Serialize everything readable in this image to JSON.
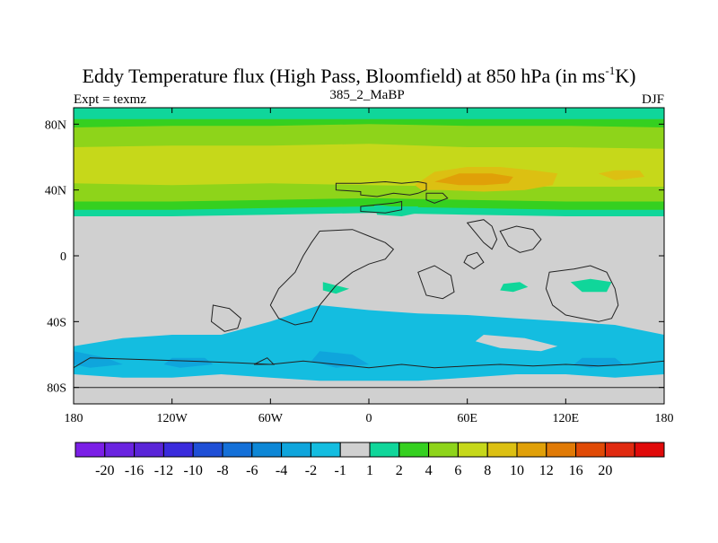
{
  "chart_data": {
    "type": "heatmap",
    "title_main": "Eddy Temperature flux (High Pass, Bloomfield) at 850 hPa (in ms",
    "title_sup": "-1",
    "title_end": "K)",
    "subtitle_left": "Expt = texmz",
    "subtitle_center": "385_2_MaBP",
    "subtitle_right": "DJF",
    "x_range": [
      -180,
      180
    ],
    "y_range": [
      -90,
      90
    ],
    "x_ticks": [
      {
        "value": -180,
        "label": "180"
      },
      {
        "value": -120,
        "label": "120W"
      },
      {
        "value": -60,
        "label": "60W"
      },
      {
        "value": 0,
        "label": "0"
      },
      {
        "value": 60,
        "label": "60E"
      },
      {
        "value": 120,
        "label": "120E"
      },
      {
        "value": 180,
        "label": "180"
      }
    ],
    "y_ticks": [
      {
        "value": 80,
        "label": "80N"
      },
      {
        "value": 40,
        "label": "40N"
      },
      {
        "value": 0,
        "label": "0"
      },
      {
        "value": -40,
        "label": "40S"
      },
      {
        "value": -80,
        "label": "80S"
      }
    ],
    "colorbar": {
      "colors": [
        "#7b1fe6",
        "#6a24e0",
        "#5a25d8",
        "#3a2bdc",
        "#1f4fd6",
        "#1470d8",
        "#0d87d6",
        "#0fa5dc",
        "#14bde0",
        "#d0d0d0",
        "#10d69a",
        "#35d020",
        "#8ed41a",
        "#c6d81a",
        "#dcc012",
        "#e0a008",
        "#e07a06",
        "#e04a06",
        "#e02a10",
        "#e00a0a"
      ],
      "labels": [
        "-20",
        "-16",
        "-12",
        "-10",
        "-8",
        "-6",
        "-4",
        "-2",
        "-1",
        "1",
        "2",
        "4",
        "6",
        "8",
        "10",
        "12",
        "16",
        "20"
      ]
    },
    "regions": [
      {
        "name": "nh-band-1-2",
        "color": "#10d69a",
        "polygon": [
          [
            -180,
            90
          ],
          [
            180,
            90
          ],
          [
            180,
            24
          ],
          [
            120,
            24
          ],
          [
            60,
            25
          ],
          [
            0,
            26
          ],
          [
            -60,
            25
          ],
          [
            -120,
            24
          ],
          [
            -180,
            24
          ]
        ]
      },
      {
        "name": "nh-band-2-4",
        "color": "#35d020",
        "polygon": [
          [
            -180,
            83
          ],
          [
            180,
            83
          ],
          [
            180,
            28
          ],
          [
            120,
            28
          ],
          [
            60,
            29
          ],
          [
            0,
            30
          ],
          [
            -60,
            29
          ],
          [
            -120,
            28
          ],
          [
            -180,
            28
          ]
        ]
      },
      {
        "name": "nh-band-4-6",
        "color": "#8ed41a",
        "polygon": [
          [
            -180,
            78
          ],
          [
            -120,
            79
          ],
          [
            -60,
            79
          ],
          [
            0,
            80
          ],
          [
            60,
            79
          ],
          [
            120,
            79
          ],
          [
            180,
            78
          ],
          [
            180,
            33
          ],
          [
            120,
            33
          ],
          [
            60,
            34
          ],
          [
            0,
            35
          ],
          [
            -60,
            34
          ],
          [
            -120,
            33
          ],
          [
            -180,
            33
          ]
        ]
      },
      {
        "name": "nh-band-6-8",
        "color": "#c6d81a",
        "polygon": [
          [
            -180,
            66
          ],
          [
            -120,
            67
          ],
          [
            -60,
            67
          ],
          [
            0,
            68
          ],
          [
            60,
            66
          ],
          [
            120,
            66
          ],
          [
            180,
            65
          ],
          [
            180,
            42
          ],
          [
            120,
            42
          ],
          [
            60,
            42
          ],
          [
            0,
            43
          ],
          [
            -60,
            44
          ],
          [
            -120,
            43
          ],
          [
            -180,
            44
          ]
        ]
      },
      {
        "name": "nh-max-8-10",
        "color": "#dcc012",
        "polygon": [
          [
            28,
            43
          ],
          [
            40,
            51
          ],
          [
            60,
            54
          ],
          [
            80,
            54
          ],
          [
            100,
            52
          ],
          [
            115,
            50
          ],
          [
            112,
            43
          ],
          [
            95,
            40
          ],
          [
            70,
            39
          ],
          [
            45,
            40
          ],
          [
            32,
            40
          ]
        ]
      },
      {
        "name": "nh-max-10-12",
        "color": "#e0a008",
        "polygon": [
          [
            40,
            45
          ],
          [
            55,
            50
          ],
          [
            75,
            50
          ],
          [
            88,
            48
          ],
          [
            85,
            44
          ],
          [
            70,
            43
          ],
          [
            55,
            43
          ]
        ]
      },
      {
        "name": "nh-spot-pacific",
        "color": "#dcc012",
        "polygon": [
          [
            140,
            50
          ],
          [
            150,
            52
          ],
          [
            165,
            52
          ],
          [
            168,
            48
          ],
          [
            150,
            46
          ]
        ]
      },
      {
        "name": "sh-band-minus1-minus2",
        "color": "#14bde0",
        "polygon": [
          [
            -180,
            -55
          ],
          [
            -150,
            -50
          ],
          [
            -120,
            -48
          ],
          [
            -90,
            -48
          ],
          [
            -60,
            -40
          ],
          [
            -30,
            -30
          ],
          [
            0,
            -33
          ],
          [
            30,
            -35
          ],
          [
            60,
            -36
          ],
          [
            90,
            -38
          ],
          [
            120,
            -40
          ],
          [
            150,
            -42
          ],
          [
            180,
            -48
          ],
          [
            180,
            -72
          ],
          [
            150,
            -74
          ],
          [
            120,
            -72
          ],
          [
            90,
            -72
          ],
          [
            60,
            -74
          ],
          [
            30,
            -76
          ],
          [
            0,
            -76
          ],
          [
            -30,
            -76
          ],
          [
            -60,
            -74
          ],
          [
            -90,
            -72
          ],
          [
            -120,
            -74
          ],
          [
            -150,
            -74
          ],
          [
            -180,
            -72
          ]
        ]
      },
      {
        "name": "sh-patch-minus2-a",
        "color": "#0fa5dc",
        "polygon": [
          [
            -180,
            -58
          ],
          [
            -160,
            -62
          ],
          [
            -150,
            -66
          ],
          [
            -170,
            -68
          ],
          [
            -180,
            -66
          ]
        ]
      },
      {
        "name": "sh-patch-minus2-b",
        "color": "#0fa5dc",
        "polygon": [
          [
            -120,
            -62
          ],
          [
            -100,
            -62
          ],
          [
            -95,
            -66
          ],
          [
            -115,
            -68
          ],
          [
            -125,
            -66
          ]
        ]
      },
      {
        "name": "sh-patch-minus2-c",
        "color": "#0fa5dc",
        "polygon": [
          [
            -30,
            -58
          ],
          [
            -10,
            -60
          ],
          [
            0,
            -66
          ],
          [
            -20,
            -68
          ],
          [
            -35,
            -64
          ]
        ]
      },
      {
        "name": "sh-patch-minus2-d",
        "color": "#0fa5dc",
        "polygon": [
          [
            130,
            -62
          ],
          [
            150,
            -62
          ],
          [
            155,
            -66
          ],
          [
            135,
            -68
          ],
          [
            125,
            -66
          ]
        ]
      },
      {
        "name": "sh-gap-indian",
        "color": "#d0d0d0",
        "polygon": [
          [
            70,
            -48
          ],
          [
            95,
            -50
          ],
          [
            115,
            -55
          ],
          [
            105,
            -58
          ],
          [
            80,
            -56
          ],
          [
            65,
            -52
          ]
        ]
      },
      {
        "name": "trop-green-atlantic",
        "color": "#10d69a",
        "polygon": [
          [
            -28,
            -16
          ],
          [
            -20,
            -18
          ],
          [
            -12,
            -20
          ],
          [
            -20,
            -23
          ],
          [
            -28,
            -21
          ]
        ]
      },
      {
        "name": "trop-green-india",
        "color": "#10d69a",
        "polygon": [
          [
            82,
            -17
          ],
          [
            92,
            -16
          ],
          [
            97,
            -19
          ],
          [
            88,
            -22
          ],
          [
            80,
            -21
          ]
        ]
      },
      {
        "name": "trop-green-australia",
        "color": "#10d69a",
        "polygon": [
          [
            123,
            -16
          ],
          [
            135,
            -14
          ],
          [
            148,
            -16
          ],
          [
            145,
            -22
          ],
          [
            130,
            -22
          ]
        ]
      },
      {
        "name": "nh-green-europe",
        "color": "#10d69a",
        "polygon": [
          [
            3,
            31
          ],
          [
            14,
            30
          ],
          [
            30,
            30
          ],
          [
            30,
            26
          ],
          [
            20,
            24
          ],
          [
            5,
            25
          ]
        ]
      }
    ],
    "coastlines": [
      [
        [
          -20,
          44
        ],
        [
          -5,
          44
        ],
        [
          10,
          45
        ],
        [
          20,
          44
        ],
        [
          30,
          45
        ],
        [
          35,
          44
        ],
        [
          35,
          40
        ],
        [
          30,
          38
        ],
        [
          25,
          37
        ],
        [
          15,
          38
        ],
        [
          5,
          36
        ],
        [
          -5,
          37
        ],
        [
          -5,
          39
        ],
        [
          -20,
          40
        ]
      ],
      [
        [
          -5,
          30
        ],
        [
          15,
          32
        ],
        [
          20,
          33
        ],
        [
          20,
          28
        ],
        [
          10,
          26
        ],
        [
          -5,
          27
        ]
      ],
      [
        [
          35,
          38
        ],
        [
          45,
          38
        ],
        [
          48,
          35
        ],
        [
          40,
          32
        ],
        [
          35,
          34
        ]
      ],
      [
        [
          -30,
          15
        ],
        [
          -10,
          16
        ],
        [
          0,
          12
        ],
        [
          10,
          8
        ],
        [
          15,
          4
        ],
        [
          10,
          -2
        ],
        [
          0,
          -5
        ],
        [
          -10,
          -10
        ],
        [
          -20,
          -18
        ],
        [
          -30,
          -30
        ],
        [
          -35,
          -40
        ],
        [
          -45,
          -42
        ],
        [
          -55,
          -38
        ],
        [
          -60,
          -30
        ],
        [
          -55,
          -20
        ],
        [
          -45,
          -10
        ],
        [
          -40,
          0
        ],
        [
          -35,
          8
        ]
      ],
      [
        [
          60,
          20
        ],
        [
          70,
          22
        ],
        [
          75,
          18
        ],
        [
          78,
          10
        ],
        [
          75,
          4
        ],
        [
          70,
          8
        ],
        [
          65,
          14
        ]
      ],
      [
        [
          80,
          15
        ],
        [
          90,
          18
        ],
        [
          100,
          16
        ],
        [
          105,
          10
        ],
        [
          100,
          4
        ],
        [
          92,
          2
        ],
        [
          85,
          6
        ]
      ],
      [
        [
          110,
          -10
        ],
        [
          125,
          -8
        ],
        [
          135,
          -6
        ],
        [
          145,
          -10
        ],
        [
          150,
          -20
        ],
        [
          152,
          -30
        ],
        [
          148,
          -38
        ],
        [
          140,
          -40
        ],
        [
          130,
          -38
        ],
        [
          120,
          -36
        ],
        [
          112,
          -30
        ],
        [
          108,
          -20
        ]
      ],
      [
        [
          -95,
          -30
        ],
        [
          -85,
          -32
        ],
        [
          -78,
          -38
        ],
        [
          -80,
          -44
        ],
        [
          -88,
          -46
        ],
        [
          -96,
          -40
        ]
      ],
      [
        [
          30,
          -10
        ],
        [
          40,
          -6
        ],
        [
          50,
          -12
        ],
        [
          52,
          -22
        ],
        [
          45,
          -26
        ],
        [
          35,
          -24
        ]
      ],
      [
        [
          -170,
          -62
        ],
        [
          -140,
          -63
        ],
        [
          -110,
          -64
        ],
        [
          -80,
          -65
        ],
        [
          -60,
          -66
        ],
        [
          -40,
          -64
        ],
        [
          -20,
          -66
        ],
        [
          0,
          -68
        ],
        [
          20,
          -66
        ],
        [
          40,
          -68
        ],
        [
          60,
          -67
        ],
        [
          80,
          -66
        ],
        [
          100,
          -67
        ],
        [
          120,
          -66
        ],
        [
          140,
          -67
        ],
        [
          160,
          -66
        ],
        [
          180,
          -64
        ],
        [
          180,
          -80
        ],
        [
          -180,
          -80
        ],
        [
          -180,
          -68
        ]
      ],
      [
        [
          60,
          0
        ],
        [
          66,
          2
        ],
        [
          70,
          -4
        ],
        [
          64,
          -8
        ],
        [
          58,
          -4
        ]
      ],
      [
        [
          -70,
          -66
        ],
        [
          -62,
          -62
        ],
        [
          -58,
          -66
        ]
      ]
    ]
  }
}
